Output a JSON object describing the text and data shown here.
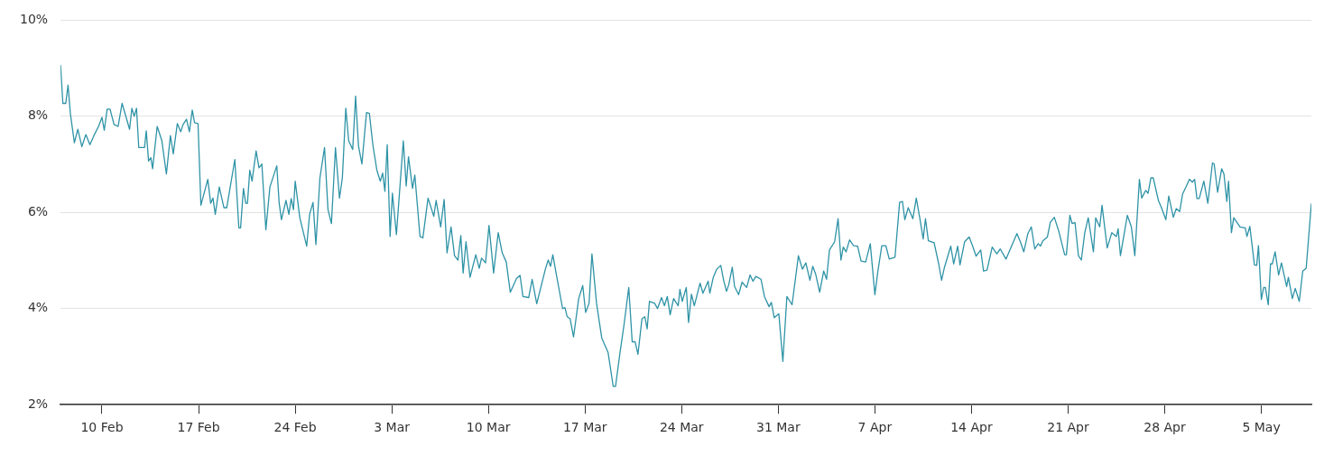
{
  "chart_data": {
    "type": "line",
    "x": [
      "--02-07T00:00",
      "--02-07T04:00",
      "--02-07T09:00",
      "--02-07T13:00",
      "--02-07T17:00",
      "--02-08T00:00",
      "--02-08T06:00",
      "--02-08T13:00",
      "--02-08T20:00",
      "--02-09T03:00",
      "--02-09T10:00",
      "--02-09T18:00",
      "--02-10T00:00",
      "--02-10T04:00",
      "--02-10T09:00",
      "--02-10T14:00",
      "--02-10T21:00",
      "--02-11T04:00",
      "--02-11T11:00",
      "--02-12T00:00",
      "--02-12T04:00",
      "--02-12T08:00",
      "--02-12T12:00",
      "--02-12T16:00",
      "--02-13T02:00",
      "--02-13T05:00",
      "--02-13T09:00",
      "--02-13T13:00",
      "--02-13T16:00",
      "--02-14T00:00",
      "--02-14T08:00",
      "--02-14T16:00",
      "--02-14T23:00",
      "--02-15T04:00",
      "--02-15T11:00",
      "--02-15T17:00",
      "--02-15T21:00",
      "--02-16T03:00",
      "--02-16T08:00",
      "--02-16T13:00",
      "--02-16T17:00",
      "--02-16T23:00",
      "--02-17T04:00",
      "--02-17T16:00",
      "--02-17T21:00",
      "--02-18T01:00",
      "--02-18T05:00",
      "--02-18T12:00",
      "--02-18T20:00",
      "--02-19T01:00",
      "--02-19T15:00",
      "--02-19T22:00",
      "--02-20T01:00",
      "--02-20T06:00",
      "--02-20T10:00",
      "--02-20T13:00",
      "--02-20T17:00",
      "--02-20T21:00",
      "--02-21T04:00",
      "--02-21T09:00",
      "--02-21T14:00",
      "--02-21T21:00",
      "--02-22T04:00",
      "--02-22T16:00",
      "--02-22T20:00",
      "--02-23T00:00",
      "--02-23T08:00",
      "--02-23T13:00",
      "--02-23T17:00",
      "--02-23T21:00",
      "--02-24T00:00",
      "--02-24T08:00",
      "--02-24T20:00",
      "--02-25T01:00",
      "--02-25T07:00",
      "--02-25T12:00",
      "--02-25T19:00",
      "--02-26T03:00",
      "--02-26T09:00",
      "--02-26T15:00",
      "--02-26T22:00",
      "--02-27T05:00",
      "--02-27T10:00",
      "--02-27T16:00",
      "--02-27T21:00",
      "--02-28T04:00",
      "--02-28T09:00",
      "--02-28T14:00",
      "--02-28T20:00",
      "--03-01T04:00",
      "--03-01T09:00",
      "--03-01T15:00",
      "--03-01T22:00",
      "--03-02T04:00",
      "--03-02T08:00",
      "--03-02T12:00",
      "--03-02T16:00",
      "--03-02T21:00",
      "--03-03T01:00",
      "--03-03T08:00",
      "--03-03T20:00",
      "--03-04T01:00",
      "--03-04T05:00",
      "--03-04T12:00",
      "--03-04T16:00",
      "--03-05T01:00",
      "--03-05T06:00",
      "--03-05T15:00",
      "--03-06T01:00",
      "--03-06T05:00",
      "--03-06T13:00",
      "--03-06T19:00",
      "--03-07T00:00",
      "--03-07T07:00",
      "--03-07T13:00",
      "--03-07T19:00",
      "--03-08T00:00",
      "--03-08T04:00",
      "--03-08T09:00",
      "--03-08T16:00",
      "--03-09T02:00",
      "--03-09T08:00",
      "--03-09T12:00",
      "--03-09T19:00",
      "--03-10T01:00",
      "--03-10T09:00",
      "--03-10T17:00",
      "--03-11T00:00",
      "--03-11T07:00",
      "--03-11T14:00",
      "--03-12T01:00",
      "--03-12T07:00",
      "--03-12T12:00",
      "--03-12T22:00",
      "--03-13T04:00",
      "--03-13T12:00",
      "--03-14T03:00",
      "--03-14T08:00",
      "--03-14T12:00",
      "--03-14T16:00",
      "--03-14T21:00",
      "--03-15T09:00",
      "--03-15T13:00",
      "--03-15T17:00",
      "--03-15T22:00",
      "--03-16T04:00",
      "--03-16T13:00",
      "--03-16T20:00",
      "--03-17T01:00",
      "--03-17T07:00",
      "--03-17T12:00",
      "--03-17T20:00",
      "--03-18T05:00",
      "--03-18T16:00",
      "--03-19T01:00",
      "--03-19T05:00",
      "--03-19T13:00",
      "--03-19T20:00",
      "--03-20T04:00",
      "--03-20T10:00",
      "--03-20T15:00",
      "--03-20T20:00",
      "--03-21T03:00",
      "--03-21T08:00",
      "--03-21T12:00",
      "--03-21T16:00",
      "--03-22T01:00",
      "--03-22T06:00",
      "--03-22T13:00",
      "--03-22T18:00",
      "--03-22T23:00",
      "--03-23T04:00",
      "--03-23T10:00",
      "--03-23T18:00",
      "--03-23T21:00",
      "--03-24T01:00",
      "--03-24T08:00",
      "--03-24T12:00",
      "--03-24T17:00",
      "--03-24T22:00",
      "--03-25T08:00",
      "--03-25T13:00",
      "--03-25T22:00",
      "--03-26T01:00",
      "--03-26T07:00",
      "--03-26T13:00",
      "--03-26T20:00",
      "--03-27T01:00",
      "--03-27T06:00",
      "--03-27T10:00",
      "--03-27T16:00",
      "--03-27T20:00",
      "--03-28T03:00",
      "--03-28T09:00",
      "--03-28T17:00",
      "--03-28T23:00",
      "--03-29T04:00",
      "--03-29T09:00",
      "--03-29T18:00",
      "--03-30T00:00",
      "--03-30T08:00",
      "--03-30T12:00",
      "--03-30T17:00",
      "--03-31T01:00",
      "--03-31T08:00",
      "--03-31T15:00",
      "--04-01T00:00",
      "--04-01T11:00",
      "--04-01T18:00",
      "--04-02T00:00",
      "--04-02T07:00",
      "--04-02T12:00",
      "--04-02T17:00",
      "--04-03T00:00",
      "--04-03T07:00",
      "--04-03T12:00",
      "--04-03T17:00",
      "--04-04T02:00",
      "--04-04T08:00",
      "--04-04T13:00",
      "--04-04T17:00",
      "--04-04T22:00",
      "--04-05T04:00",
      "--04-05T11:00",
      "--04-05T18:00",
      "--04-06T00:00",
      "--04-06T08:00",
      "--04-06T16:00",
      "--04-07T00:00",
      "--04-07T05:00",
      "--04-07T12:00",
      "--04-07T19:00",
      "--04-08T01:00",
      "--04-08T11:00",
      "--04-08T19:00",
      "--04-09T00:00",
      "--04-09T04:00",
      "--04-09T10:00",
      "--04-09T18:00",
      "--04-10T00:00",
      "--04-10T06:00",
      "--04-10T12:00",
      "--04-10T16:00",
      "--04-10T21:00",
      "--04-11T07:00",
      "--04-11T15:00",
      "--04-11T20:00",
      "--04-12T01:00",
      "--04-12T12:00",
      "--04-12T17:00",
      "--04-13T00:00",
      "--04-13T04:00",
      "--04-13T12:00",
      "--04-13T20:00",
      "--04-14T02:00",
      "--04-14T08:00",
      "--04-14T16:00",
      "--04-14T21:00",
      "--04-15T03:00",
      "--04-15T12:00",
      "--04-15T20:00",
      "--04-16T02:00",
      "--04-16T12:00",
      "--04-16T22:00",
      "--04-17T07:00",
      "--04-17T13:00",
      "--04-17T19:00",
      "--04-18T02:00",
      "--04-18T08:00",
      "--04-18T14:00",
      "--04-18T20:00",
      "--04-19T00:00",
      "--04-19T04:00",
      "--04-19T12:00",
      "--04-19T17:00",
      "--04-20T00:00",
      "--04-20T08:00",
      "--04-20T18:00",
      "--04-20T21:00",
      "--04-21T03:00",
      "--04-21T07:00",
      "--04-21T12:00",
      "--04-21T18:00",
      "--04-21T23:00",
      "--04-22T05:00",
      "--04-22T11:00",
      "--04-22T20:00",
      "--04-23T00:00",
      "--04-23T07:00",
      "--04-23T11:00",
      "--04-23T20:00",
      "--04-24T04:00",
      "--04-24T12:00",
      "--04-24T15:00",
      "--04-24T19:00",
      "--04-25T07:00",
      "--04-25T14:00",
      "--04-25T20:00",
      "--04-26T04:00",
      "--04-26T08:00",
      "--04-26T15:00",
      "--04-26T19:00",
      "--04-27T00:00",
      "--04-27T04:00",
      "--04-27T13:00",
      "--04-27T18:00",
      "--04-28T02:00",
      "--04-28T07:00",
      "--04-28T15:00",
      "--04-28T20:00",
      "--04-29T02:00",
      "--04-29T07:00",
      "--04-29T13:00",
      "--04-29T19:00",
      "--04-30T00:00",
      "--04-30T04:00",
      "--04-30T08:00",
      "--04-30T12:00",
      "--04-30T20:00",
      "--05-01T03:00",
      "--05-01T11:00",
      "--05-01T14:00",
      "--05-01T20:00",
      "--05-02T03:00",
      "--05-02T07:00",
      "--05-02T12:00",
      "--05-02T15:00",
      "--05-02T20:00",
      "--05-03T00:00",
      "--05-03T11:00",
      "--05-03T20:00",
      "--05-03T23:00",
      "--05-04T04:00",
      "--05-04T12:00",
      "--05-04T16:00",
      "--05-04T19:00",
      "--05-05T00:00",
      "--05-05T04:00",
      "--05-05T07:00",
      "--05-05T12:00",
      "--05-05T16:00",
      "--05-05T19:00",
      "--05-06T00:00",
      "--05-06T06:00",
      "--05-06T11:00",
      "--05-06T20:00",
      "--05-06T23:00",
      "--05-07T06:00",
      "--05-07T11:00",
      "--05-07T18:00",
      "--05-08T00:00",
      "--05-08T06:00",
      "--05-08T15:00"
    ],
    "series": [
      {
        "color": "#2e93a6",
        "values": [
          9.07,
          8.27,
          8.27,
          8.65,
          8.06,
          7.45,
          7.73,
          7.37,
          7.62,
          7.41,
          7.6,
          7.79,
          7.98,
          7.71,
          8.15,
          8.15,
          7.83,
          7.79,
          8.27,
          7.73,
          8.17,
          8.0,
          8.17,
          7.35,
          7.35,
          7.7,
          7.07,
          7.14,
          6.91,
          7.79,
          7.5,
          6.8,
          7.6,
          7.22,
          7.85,
          7.68,
          7.83,
          7.94,
          7.68,
          8.13,
          7.87,
          7.85,
          6.15,
          6.69,
          6.19,
          6.3,
          5.96,
          6.53,
          6.1,
          6.1,
          7.1,
          5.68,
          5.68,
          6.5,
          6.19,
          6.19,
          6.88,
          6.65,
          7.28,
          6.93,
          7.01,
          5.64,
          6.53,
          6.97,
          6.21,
          5.85,
          6.25,
          5.96,
          6.29,
          6.06,
          6.65,
          5.89,
          5.3,
          5.96,
          6.21,
          5.33,
          6.72,
          7.35,
          6.06,
          5.77,
          7.35,
          6.3,
          6.72,
          8.17,
          7.49,
          7.31,
          8.42,
          7.39,
          7.01,
          8.08,
          8.06,
          7.41,
          6.88,
          6.65,
          6.82,
          6.44,
          7.41,
          5.5,
          6.4,
          5.54,
          7.49,
          6.55,
          7.16,
          6.5,
          6.78,
          5.5,
          5.47,
          6.3,
          5.92,
          6.25,
          5.7,
          6.27,
          5.16,
          5.7,
          5.1,
          5.01,
          5.52,
          4.74,
          5.39,
          4.65,
          5.12,
          4.84,
          5.05,
          4.95,
          5.73,
          4.74,
          5.58,
          5.16,
          4.97,
          4.34,
          4.63,
          4.69,
          4.25,
          4.23,
          4.61,
          4.1,
          4.82,
          5.01,
          4.88,
          5.12,
          4.78,
          4.0,
          4.02,
          3.83,
          3.79,
          3.41,
          4.21,
          4.48,
          3.92,
          4.11,
          5.14,
          4.11,
          3.39,
          3.09,
          2.38,
          2.38,
          3.1,
          3.68,
          4.44,
          3.31,
          3.31,
          3.05,
          3.79,
          3.83,
          3.58,
          4.15,
          4.11,
          4.0,
          4.23,
          4.06,
          4.25,
          3.87,
          4.21,
          4.06,
          4.4,
          4.15,
          4.44,
          3.71,
          4.3,
          4.06,
          4.53,
          4.32,
          4.57,
          4.32,
          4.65,
          4.82,
          4.9,
          4.59,
          4.36,
          4.5,
          4.86,
          4.46,
          4.29,
          4.55,
          4.44,
          4.7,
          4.57,
          4.67,
          4.61,
          4.25,
          4.04,
          4.13,
          3.81,
          3.89,
          2.9,
          4.25,
          4.08,
          5.1,
          4.82,
          4.95,
          4.59,
          4.88,
          4.72,
          4.34,
          4.78,
          4.61,
          5.22,
          5.39,
          5.87,
          5.01,
          5.28,
          5.18,
          5.43,
          5.31,
          5.3,
          4.99,
          4.97,
          5.35,
          4.29,
          4.76,
          5.31,
          5.31,
          5.03,
          5.07,
          6.21,
          6.23,
          5.85,
          6.1,
          5.87,
          6.3,
          5.89,
          5.45,
          5.87,
          5.41,
          5.37,
          4.93,
          4.59,
          4.86,
          5.3,
          4.93,
          5.3,
          4.91,
          5.39,
          5.49,
          5.3,
          5.09,
          5.22,
          4.78,
          4.8,
          5.28,
          5.14,
          5.24,
          5.03,
          5.31,
          5.56,
          5.39,
          5.18,
          5.56,
          5.7,
          5.24,
          5.35,
          5.3,
          5.41,
          5.49,
          5.79,
          5.9,
          5.6,
          5.12,
          5.12,
          5.94,
          5.77,
          5.79,
          5.1,
          5.01,
          5.58,
          5.89,
          5.18,
          5.89,
          5.7,
          6.15,
          5.26,
          5.58,
          5.5,
          5.66,
          5.1,
          5.94,
          5.7,
          5.1,
          6.69,
          6.3,
          6.46,
          6.4,
          6.72,
          6.72,
          6.25,
          6.11,
          5.85,
          6.34,
          5.9,
          6.08,
          6.02,
          6.38,
          6.53,
          6.69,
          6.63,
          6.69,
          6.29,
          6.29,
          6.65,
          6.19,
          7.03,
          7.01,
          6.42,
          6.91,
          6.8,
          6.23,
          6.65,
          5.58,
          5.89,
          5.7,
          5.68,
          5.5,
          5.71,
          4.91,
          4.9,
          5.31,
          4.19,
          4.44,
          4.44,
          4.08,
          4.93,
          4.93,
          5.18,
          4.7,
          4.95,
          4.46,
          4.65,
          4.21,
          4.42,
          4.15,
          4.78,
          4.84,
          6.19
        ]
      }
    ],
    "xlim": [
      "--02-07T00:00",
      "--05-08T15:00"
    ],
    "xticks": [
      {
        "value": "--02-10",
        "label": "10 Feb"
      },
      {
        "value": "--02-17",
        "label": "17 Feb"
      },
      {
        "value": "--02-24",
        "label": "24 Feb"
      },
      {
        "value": "--03-03",
        "label": "3 Mar"
      },
      {
        "value": "--03-10",
        "label": "10 Mar"
      },
      {
        "value": "--03-17",
        "label": "17 Mar"
      },
      {
        "value": "--03-24",
        "label": "24 Mar"
      },
      {
        "value": "--03-31",
        "label": "31 Mar"
      },
      {
        "value": "--04-07",
        "label": "7 Apr"
      },
      {
        "value": "--04-14",
        "label": "14 Apr"
      },
      {
        "value": "--04-21",
        "label": "21 Apr"
      },
      {
        "value": "--04-28",
        "label": "28 Apr"
      },
      {
        "value": "--05-05",
        "label": "5 May"
      }
    ],
    "ylim": [
      2,
      10
    ],
    "yticks": [
      {
        "value": 2,
        "label": "2%"
      },
      {
        "value": 4,
        "label": "4%"
      },
      {
        "value": 6,
        "label": "6%"
      },
      {
        "value": 8,
        "label": "8%"
      },
      {
        "value": 10,
        "label": "10%"
      }
    ],
    "grid": "y",
    "legend": false
  }
}
